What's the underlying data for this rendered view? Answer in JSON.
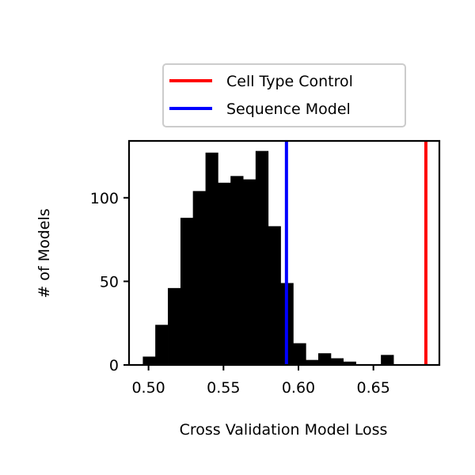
{
  "chart_data": {
    "type": "bar",
    "title": "",
    "xlabel": "Cross Validation Model Loss",
    "ylabel": "# of Models",
    "xlim": [
      0.487,
      0.694
    ],
    "ylim": [
      0,
      134
    ],
    "grid": false,
    "legend_position": "top (above plot)",
    "x_ticks": [
      0.5,
      0.55,
      0.6,
      0.65
    ],
    "x_tick_labels": [
      "0.50",
      "0.55",
      "0.60",
      "0.65"
    ],
    "y_ticks": [
      0,
      50,
      100
    ],
    "y_tick_labels": [
      "0",
      "50",
      "100"
    ],
    "histogram": {
      "color": "#000000",
      "bin_edges": [
        0.4962,
        0.5045,
        0.5129,
        0.5213,
        0.5296,
        0.538,
        0.5463,
        0.5547,
        0.5631,
        0.5714,
        0.5798,
        0.5881,
        0.5965,
        0.6049,
        0.6132,
        0.6216,
        0.6299,
        0.6383,
        0.6467,
        0.655,
        0.6634,
        0.6718
      ],
      "counts": [
        5,
        24,
        46,
        88,
        104,
        127,
        109,
        113,
        111,
        128,
        83,
        49,
        13,
        3,
        7,
        4,
        2,
        0,
        0,
        6,
        0
      ]
    },
    "reference_lines": [
      {
        "name": "Cell Type Control",
        "x": 0.685,
        "color": "#ff0000"
      },
      {
        "name": "Sequence Model",
        "x": 0.592,
        "color": "#0000ff"
      }
    ]
  }
}
